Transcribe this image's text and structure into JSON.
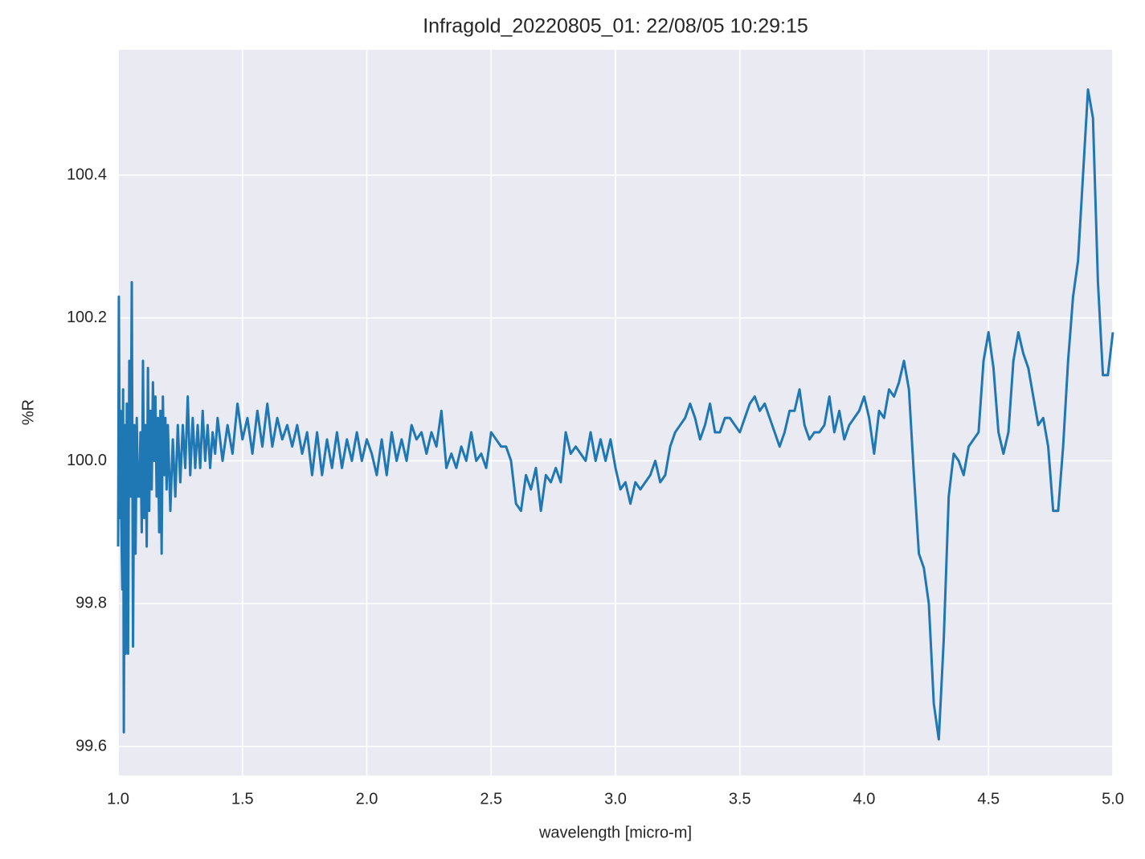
{
  "chart_data": {
    "type": "line",
    "title": "Infragold_20220805_01:  22/08/05 10:29:15",
    "xlabel": "wavelength [micro-m]",
    "ylabel": "%R",
    "xlim": [
      1.0,
      5.0
    ],
    "ylim": [
      99.5595,
      100.5755
    ],
    "xticks": [
      {
        "value": 1.0,
        "label": "1.0"
      },
      {
        "value": 1.5,
        "label": "1.5"
      },
      {
        "value": 2.0,
        "label": "2.0"
      },
      {
        "value": 2.5,
        "label": "2.5"
      },
      {
        "value": 3.0,
        "label": "3.0"
      },
      {
        "value": 3.5,
        "label": "3.5"
      },
      {
        "value": 4.0,
        "label": "4.0"
      },
      {
        "value": 4.5,
        "label": "4.5"
      },
      {
        "value": 5.0,
        "label": "5.0"
      }
    ],
    "yticks": [
      99.6,
      99.8,
      {
        "value": 100,
        "label": "100.0"
      },
      100.2,
      100.4
    ],
    "grid": true,
    "series": [
      {
        "color": "#1f77b4",
        "x": [
          1.0,
          1.003,
          1.007,
          1.01,
          1.013,
          1.017,
          1.02,
          1.023,
          1.027,
          1.03,
          1.035,
          1.04,
          1.045,
          1.05,
          1.055,
          1.06,
          1.065,
          1.07,
          1.075,
          1.08,
          1.085,
          1.09,
          1.095,
          1.1,
          1.105,
          1.11,
          1.115,
          1.12,
          1.125,
          1.13,
          1.135,
          1.14,
          1.145,
          1.15,
          1.155,
          1.16,
          1.165,
          1.17,
          1.175,
          1.18,
          1.185,
          1.19,
          1.195,
          1.2,
          1.21,
          1.22,
          1.23,
          1.24,
          1.25,
          1.26,
          1.27,
          1.28,
          1.29,
          1.3,
          1.31,
          1.32,
          1.33,
          1.34,
          1.35,
          1.36,
          1.37,
          1.38,
          1.39,
          1.4,
          1.42,
          1.44,
          1.46,
          1.48,
          1.5,
          1.52,
          1.54,
          1.56,
          1.58,
          1.6,
          1.62,
          1.64,
          1.66,
          1.68,
          1.7,
          1.72,
          1.74,
          1.76,
          1.78,
          1.8,
          1.82,
          1.84,
          1.86,
          1.88,
          1.9,
          1.92,
          1.94,
          1.96,
          1.98,
          2.0,
          2.02,
          2.04,
          2.06,
          2.08,
          2.1,
          2.12,
          2.14,
          2.16,
          2.18,
          2.2,
          2.22,
          2.24,
          2.26,
          2.28,
          2.3,
          2.32,
          2.34,
          2.36,
          2.38,
          2.4,
          2.42,
          2.44,
          2.46,
          2.48,
          2.5,
          2.52,
          2.54,
          2.56,
          2.58,
          2.6,
          2.62,
          2.64,
          2.66,
          2.68,
          2.7,
          2.72,
          2.74,
          2.76,
          2.78,
          2.8,
          2.82,
          2.84,
          2.86,
          2.88,
          2.9,
          2.92,
          2.94,
          2.96,
          2.98,
          3.0,
          3.02,
          3.04,
          3.06,
          3.08,
          3.1,
          3.12,
          3.14,
          3.16,
          3.18,
          3.2,
          3.22,
          3.24,
          3.26,
          3.28,
          3.3,
          3.32,
          3.34,
          3.36,
          3.38,
          3.4,
          3.42,
          3.44,
          3.46,
          3.48,
          3.5,
          3.52,
          3.54,
          3.56,
          3.58,
          3.6,
          3.62,
          3.64,
          3.66,
          3.68,
          3.7,
          3.72,
          3.74,
          3.76,
          3.78,
          3.8,
          3.82,
          3.84,
          3.86,
          3.88,
          3.9,
          3.92,
          3.94,
          3.96,
          3.98,
          4.0,
          4.02,
          4.04,
          4.06,
          4.08,
          4.1,
          4.12,
          4.14,
          4.16,
          4.18,
          4.2,
          4.22,
          4.24,
          4.26,
          4.28,
          4.3,
          4.32,
          4.34,
          4.36,
          4.38,
          4.4,
          4.42,
          4.44,
          4.46,
          4.48,
          4.5,
          4.52,
          4.54,
          4.56,
          4.58,
          4.6,
          4.62,
          4.64,
          4.66,
          4.68,
          4.7,
          4.72,
          4.74,
          4.76,
          4.78,
          4.8,
          4.82,
          4.84,
          4.86,
          4.88,
          4.9,
          4.92,
          4.94,
          4.96,
          4.98,
          5.0
        ],
        "values": [
          99.88,
          100.23,
          99.92,
          100.07,
          99.91,
          99.82,
          100.1,
          99.62,
          100.05,
          99.73,
          100.08,
          99.73,
          100.14,
          99.95,
          100.25,
          99.74,
          100.05,
          99.87,
          100.06,
          99.95,
          99.95,
          100.04,
          99.9,
          100.14,
          99.92,
          100.05,
          99.88,
          100.13,
          99.93,
          100.07,
          99.96,
          100.11,
          100.0,
          100.09,
          99.95,
          100.06,
          99.9,
          100.07,
          99.87,
          100.09,
          99.98,
          100.06,
          99.96,
          100.05,
          99.93,
          100.03,
          99.95,
          100.05,
          99.97,
          100.05,
          99.99,
          100.09,
          99.98,
          100.06,
          99.99,
          100.05,
          99.99,
          100.07,
          100.0,
          100.05,
          99.99,
          100.04,
          100.01,
          100.06,
          100.0,
          100.05,
          100.01,
          100.08,
          100.03,
          100.06,
          100.01,
          100.07,
          100.02,
          100.08,
          100.02,
          100.06,
          100.03,
          100.05,
          100.02,
          100.05,
          100.01,
          100.04,
          99.98,
          100.04,
          99.98,
          100.03,
          99.99,
          100.04,
          99.99,
          100.03,
          100.0,
          100.04,
          100.0,
          100.03,
          100.01,
          99.98,
          100.03,
          99.98,
          100.04,
          100.0,
          100.03,
          100.0,
          100.05,
          100.03,
          100.04,
          100.01,
          100.04,
          100.02,
          100.07,
          99.99,
          100.01,
          99.99,
          100.02,
          100.0,
          100.04,
          100.0,
          100.01,
          99.99,
          100.04,
          100.03,
          100.02,
          100.02,
          100.0,
          99.94,
          99.93,
          99.98,
          99.96,
          99.99,
          99.93,
          99.98,
          99.97,
          99.99,
          99.97,
          100.04,
          100.01,
          100.02,
          100.01,
          100.0,
          100.04,
          100.0,
          100.03,
          100.0,
          100.03,
          99.99,
          99.96,
          99.97,
          99.94,
          99.97,
          99.96,
          99.97,
          99.98,
          100.0,
          99.97,
          99.98,
          100.02,
          100.04,
          100.05,
          100.06,
          100.08,
          100.06,
          100.03,
          100.05,
          100.08,
          100.04,
          100.04,
          100.06,
          100.06,
          100.05,
          100.04,
          100.06,
          100.08,
          100.09,
          100.07,
          100.08,
          100.06,
          100.04,
          100.02,
          100.04,
          100.07,
          100.07,
          100.1,
          100.05,
          100.03,
          100.04,
          100.04,
          100.05,
          100.09,
          100.04,
          100.07,
          100.03,
          100.05,
          100.06,
          100.07,
          100.09,
          100.06,
          100.01,
          100.07,
          100.06,
          100.1,
          100.09,
          100.11,
          100.14,
          100.1,
          99.98,
          99.87,
          99.85,
          99.8,
          99.66,
          99.61,
          99.75,
          99.95,
          100.01,
          100.0,
          99.98,
          100.02,
          100.03,
          100.04,
          100.14,
          100.18,
          100.13,
          100.04,
          100.01,
          100.04,
          100.14,
          100.18,
          100.15,
          100.13,
          100.09,
          100.05,
          100.06,
          100.02,
          99.93,
          99.93,
          100.02,
          100.14,
          100.23,
          100.28,
          100.4,
          100.52,
          100.48,
          100.25,
          100.12,
          100.12,
          100.18
        ]
      }
    ]
  }
}
